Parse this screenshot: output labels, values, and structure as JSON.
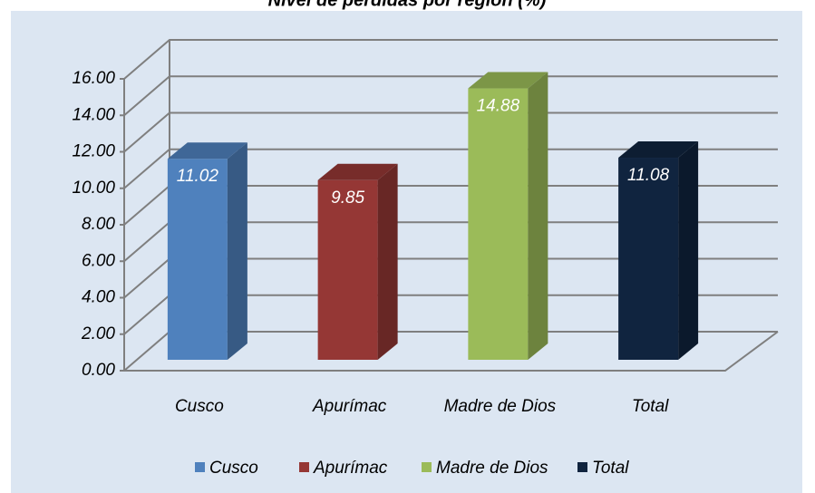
{
  "chart_data": {
    "type": "bar3d",
    "title": "Nivel de pérdidas por región (%)",
    "categories": [
      "Cusco",
      "Apurímac",
      "Madre de Dios",
      "Total"
    ],
    "values": [
      11.02,
      9.85,
      14.88,
      11.08
    ],
    "colors": [
      "#4f81bd",
      "#953735",
      "#9bbb59",
      "#10243f"
    ],
    "ylim": [
      0,
      16
    ],
    "yticks": [
      {
        "value": 0,
        "label": "0.00"
      },
      {
        "value": 2,
        "label": "2.00"
      },
      {
        "value": 4,
        "label": "4.00"
      },
      {
        "value": 6,
        "label": "6.00"
      },
      {
        "value": 8,
        "label": "8.00"
      },
      {
        "value": 10,
        "label": "10.00"
      },
      {
        "value": 12,
        "label": "12.00"
      },
      {
        "value": 14,
        "label": "14.00"
      },
      {
        "value": 16,
        "label": "16.00"
      }
    ],
    "grid": true,
    "legend": "bottom"
  }
}
